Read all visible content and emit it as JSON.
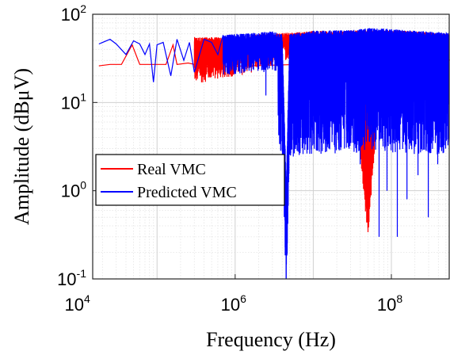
{
  "chart_data": {
    "type": "line",
    "xscale": "log",
    "yscale": "log",
    "xlim": [
      15000,
      550000000
    ],
    "ylim": [
      0.1,
      100
    ],
    "xlabel": "Frequency (Hz)",
    "ylabel": "Amplitude (dBμV)",
    "x_ticks": [
      {
        "base": "10",
        "exp": "4",
        "value": 10000
      },
      {
        "base": "10",
        "exp": "6",
        "value": 1000000
      },
      {
        "base": "10",
        "exp": "8",
        "value": 100000000
      }
    ],
    "y_ticks": [
      {
        "base": "10",
        "exp": "-1",
        "value": 0.1
      },
      {
        "base": "10",
        "exp": "0",
        "value": 1
      },
      {
        "base": "10",
        "exp": "1",
        "value": 10
      },
      {
        "base": "10",
        "exp": "2",
        "value": 100
      }
    ],
    "grid": true,
    "minor_grid": true,
    "legend_position": "middle-left",
    "series": [
      {
        "name": "Real VMC",
        "color": "#ff0000",
        "points": [
          [
            18000,
            26
          ],
          [
            25000,
            27
          ],
          [
            35000,
            27
          ],
          [
            48000,
            45
          ],
          [
            60000,
            27
          ],
          [
            80000,
            27
          ],
          [
            100000,
            27
          ],
          [
            130000,
            27
          ],
          [
            160000,
            45
          ],
          [
            180000,
            27
          ],
          [
            250000,
            28
          ],
          [
            300000,
            27
          ],
          [
            400000,
            28
          ],
          [
            500000,
            30
          ],
          [
            700000,
            31
          ],
          [
            1000000,
            33
          ],
          [
            1500000,
            35
          ],
          [
            2000000,
            40
          ],
          [
            3000000,
            45
          ],
          [
            5000000,
            50
          ],
          [
            8000000,
            54
          ],
          [
            10000000,
            52
          ],
          [
            20000000,
            50
          ],
          [
            30000000,
            48
          ],
          [
            50000000,
            0.5
          ],
          [
            70000000,
            20
          ],
          [
            100000000,
            20
          ],
          [
            200000000,
            18
          ],
          [
            300000000,
            15
          ],
          [
            550000000,
            30
          ]
        ],
        "upper": [
          [
            1000000,
            55
          ],
          [
            2000000,
            60
          ],
          [
            5000000,
            62
          ],
          [
            10000000,
            65
          ],
          [
            20000000,
            65
          ],
          [
            50000000,
            66
          ],
          [
            100000000,
            66
          ],
          [
            200000000,
            64
          ],
          [
            550000000,
            60
          ]
        ]
      },
      {
        "name": "Predicted VMC",
        "color": "#0000ff",
        "points": [
          [
            18000,
            46
          ],
          [
            25000,
            52
          ],
          [
            30000,
            46
          ],
          [
            40000,
            35
          ],
          [
            50000,
            50
          ],
          [
            60000,
            46
          ],
          [
            70000,
            35
          ],
          [
            80000,
            46
          ],
          [
            90000,
            17
          ],
          [
            100000,
            45
          ],
          [
            120000,
            48
          ],
          [
            150000,
            20
          ],
          [
            180000,
            52
          ],
          [
            220000,
            30
          ],
          [
            260000,
            48
          ],
          [
            300000,
            22
          ],
          [
            400000,
            52
          ],
          [
            500000,
            48
          ],
          [
            600000,
            35
          ],
          [
            700000,
            58
          ],
          [
            1000000,
            60
          ],
          [
            2000000,
            62
          ],
          [
            3000000,
            64
          ],
          [
            4000000,
            60
          ],
          [
            4500000,
            1.1
          ],
          [
            5000000,
            60
          ],
          [
            10000000,
            65
          ],
          [
            20000000,
            66
          ],
          [
            30000000,
            66
          ],
          [
            50000000,
            70
          ],
          [
            100000000,
            68
          ],
          [
            200000000,
            65
          ],
          [
            550000000,
            62
          ]
        ],
        "dips": [
          [
            2500000,
            12
          ],
          [
            4500000,
            1.1
          ],
          [
            8000000,
            8
          ],
          [
            12000000,
            4
          ],
          [
            18000000,
            6
          ],
          [
            25000000,
            3
          ],
          [
            40000000,
            2
          ],
          [
            70000000,
            0.3
          ],
          [
            90000000,
            1
          ],
          [
            120000000,
            0.3
          ],
          [
            160000000,
            0.8
          ],
          [
            220000000,
            1.5
          ],
          [
            300000000,
            0.5
          ],
          [
            400000000,
            2
          ],
          [
            500000000,
            3
          ]
        ]
      }
    ]
  }
}
